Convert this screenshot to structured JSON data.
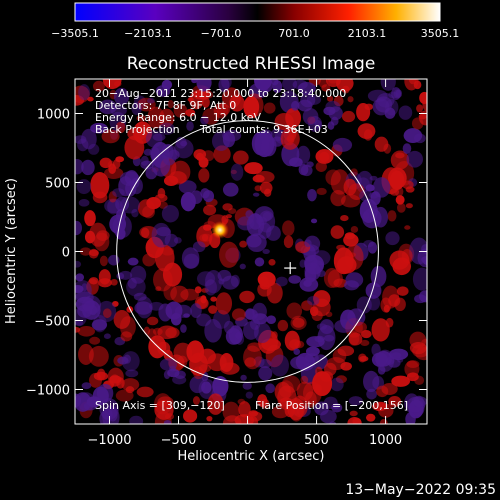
{
  "chart_data": {
    "type": "heatmap",
    "title": "Reconstructed RHESSI Image",
    "xlabel": "Heliocentric X (arcsec)",
    "ylabel": "Heliocentric Y (arcsec)",
    "xlim": [
      -1250,
      1300
    ],
    "ylim": [
      -1250,
      1250
    ],
    "x_ticks": [
      -1000,
      -500,
      0,
      500,
      1000
    ],
    "x_tick_labels": [
      "−1000",
      "−500",
      "0",
      "500",
      "1000"
    ],
    "y_ticks": [
      1000,
      500,
      0,
      -500,
      -1000
    ],
    "y_tick_labels": [
      "1000",
      "500",
      "0",
      "−500",
      "−1000"
    ],
    "colorbar": {
      "min": -3505.1,
      "max": 3505.1,
      "tick_labels": [
        "−3505.1",
        "−2103.1",
        "−701.0",
        "701.0",
        "2103.1",
        "3505.1"
      ]
    },
    "info_lines": [
      "20−Aug−2011 23:15:20.000 to 23:18:40.000",
      "Detectors: 7F 8F 9F, Att 0",
      "Energy Range: 6.0 − 12.0 keV"
    ],
    "method": "Back Projection",
    "total_counts": "Total counts: 9.36E+03",
    "spin_axis_label": "Spin Axis = [309,−120]",
    "flare_position_label": "Flare Position = [−200,156]",
    "spin_axis": [
      309,
      -120
    ],
    "flare_position": [
      -200,
      156
    ],
    "solar_limb_radius": 948,
    "colors": {
      "background": "#000000",
      "limb": "#ffffff",
      "positive": "#cc1010",
      "negative": "#4a1a8a",
      "peak": "#ffffe0"
    }
  },
  "footer": {
    "timestamp": "13−May−2022 09:35"
  }
}
